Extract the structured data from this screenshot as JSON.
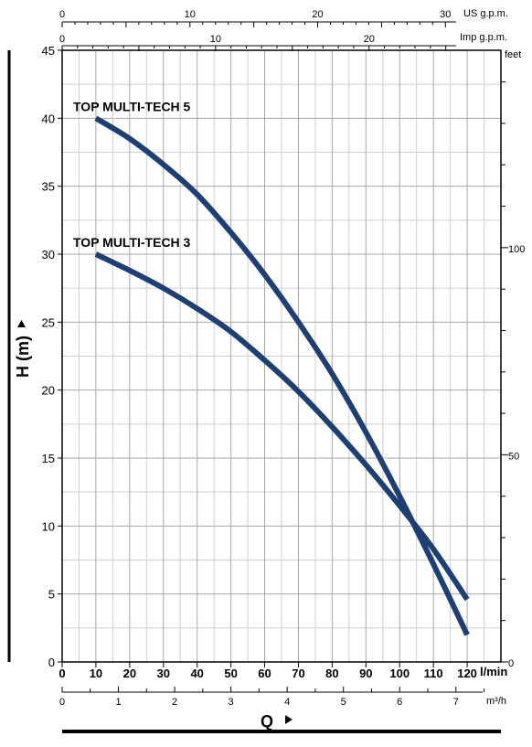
{
  "chart_data": {
    "type": "line",
    "title": "",
    "xlabel": "Q",
    "ylabel": "H (m)",
    "grid": true,
    "x_unit": "l/min",
    "xlim": [
      0,
      130
    ],
    "ylim": [
      0,
      45
    ],
    "x_ticks": [
      0,
      10,
      20,
      30,
      40,
      50,
      60,
      70,
      80,
      90,
      100,
      110,
      120
    ],
    "y_ticks": [
      0,
      5,
      10,
      15,
      20,
      25,
      30,
      35,
      40,
      45
    ],
    "secondary_axes": {
      "m3h": {
        "label": "m³/h",
        "ticks": [
          "0",
          "1",
          "2",
          "3",
          "4",
          "5",
          "6",
          "7"
        ]
      },
      "us_gpm": {
        "label": "US g.p.m.",
        "ticks": [
          "0",
          "10",
          "20",
          "30"
        ]
      },
      "imp_gpm": {
        "label": "Imp g.p.m.",
        "ticks": [
          "0",
          "10",
          "20"
        ]
      },
      "feet": {
        "label": "feet",
        "ticks": [
          "0",
          "50",
          "100"
        ]
      }
    },
    "series": [
      {
        "name": "TOP MULTI-TECH 5",
        "x": [
          10,
          20,
          30,
          40,
          50,
          60,
          70,
          80,
          90,
          100,
          110,
          120
        ],
        "y": [
          40,
          38.5,
          36.6,
          34.4,
          31.6,
          28.5,
          25,
          21.2,
          16.9,
          12.2,
          7.2,
          2.0
        ]
      },
      {
        "name": "TOP MULTI-TECH 3",
        "x": [
          10,
          20,
          30,
          40,
          50,
          60,
          70,
          80,
          90,
          100,
          110,
          120
        ],
        "y": [
          30,
          28.8,
          27.5,
          26.0,
          24.3,
          22.2,
          19.9,
          17.3,
          14.5,
          11.5,
          8.3,
          4.6
        ]
      }
    ],
    "series_color": "#1e3f73"
  }
}
